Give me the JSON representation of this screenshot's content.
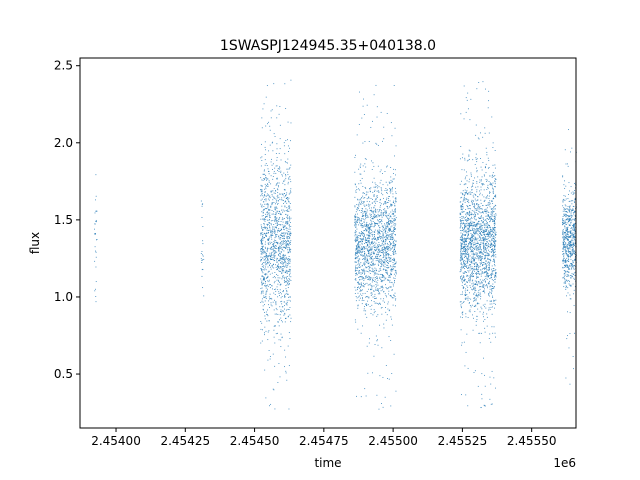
{
  "chart_data": {
    "type": "scatter",
    "title": "1SWASPJ124945.35+040138.0",
    "xlabel": "time",
    "ylabel": "flux",
    "x_offset_label": "1e6",
    "xlim": [
      2.45387,
      2.45566
    ],
    "ylim": [
      0.15,
      2.55
    ],
    "x_ticks": [
      2.454,
      2.45425,
      2.4545,
      2.45475,
      2.455,
      2.45525,
      2.4555
    ],
    "x_tick_labels": [
      "2.45400",
      "2.45425",
      "2.45450",
      "2.45475",
      "2.45500",
      "2.45525",
      "2.45550"
    ],
    "y_ticks": [
      0.5,
      1.0,
      1.5,
      2.0,
      2.5
    ],
    "y_tick_labels": [
      "0.5",
      "1.0",
      "1.5",
      "2.0",
      "2.5"
    ],
    "grid": false,
    "marker_color": "#1f77b4",
    "series": [
      {
        "clusters": [
          {
            "x_range": [
              2.45392,
              2.45393
            ],
            "center": 1.35,
            "spread": 0.22,
            "min": 0.95,
            "max": 1.9,
            "count": 30
          },
          {
            "x_range": [
              2.454305,
              2.454315
            ],
            "center": 1.3,
            "spread": 0.2,
            "min": 0.75,
            "max": 1.65,
            "count": 22
          },
          {
            "x_range": [
              2.45452,
              2.45463
            ],
            "center": 1.35,
            "spread": 0.28,
            "min": 0.27,
            "max": 2.44,
            "count": 1300
          },
          {
            "x_range": [
              2.45486,
              2.45501
            ],
            "center": 1.35,
            "spread": 0.2,
            "min": 0.25,
            "max": 2.38,
            "count": 1700
          },
          {
            "x_range": [
              2.45524,
              2.45537
            ],
            "center": 1.35,
            "spread": 0.22,
            "min": 0.26,
            "max": 2.42,
            "count": 1800
          },
          {
            "x_range": [
              2.45561,
              2.45566
            ],
            "center": 1.37,
            "spread": 0.15,
            "min": 0.33,
            "max": 2.31,
            "count": 650
          }
        ]
      }
    ]
  }
}
